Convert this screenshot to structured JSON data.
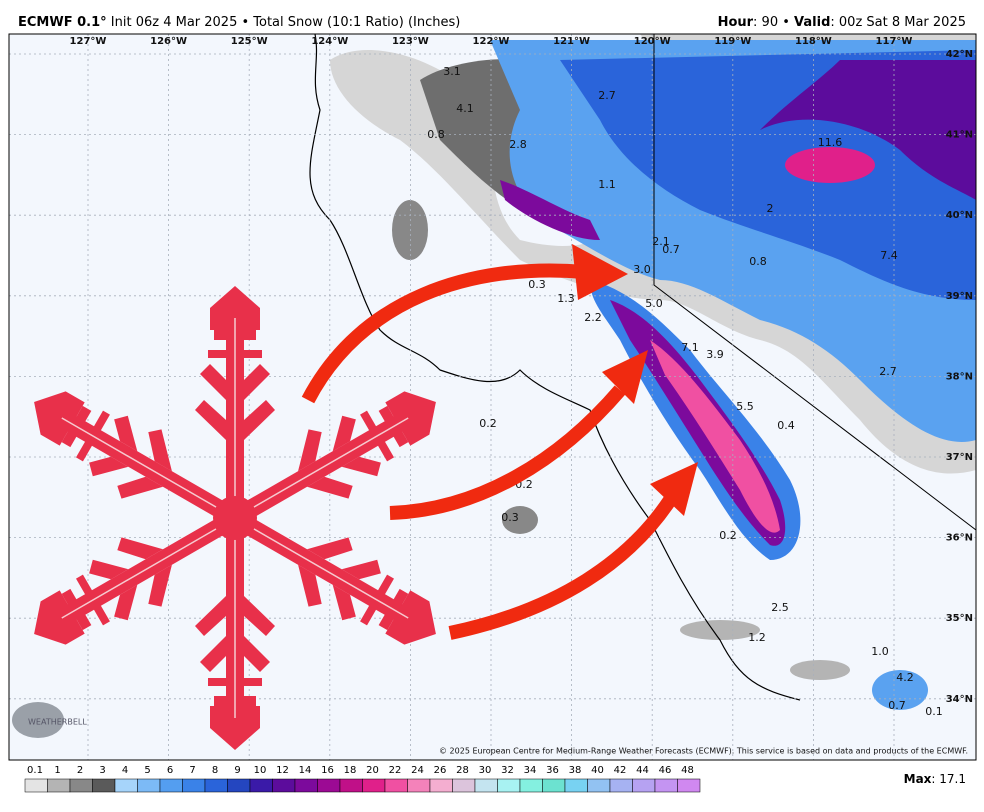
{
  "header": {
    "model": "ECMWF 0.1°",
    "details": "Init 06z 4 Mar 2025 • Total Snow (10:1 Ratio) (Inches)",
    "hour_label": "Hour",
    "hour_value": ": 90 • ",
    "valid_label": "Valid",
    "valid_value": ": 00z Sat 8 Mar 2025"
  },
  "map": {
    "lon_labels": [
      "127°W",
      "126°W",
      "125°W",
      "124°W",
      "123°W",
      "122°W",
      "121°W",
      "120°W",
      "119°W",
      "118°W",
      "117°W"
    ],
    "lat_labels": [
      "42°N",
      "41°N",
      "40°N",
      "39°N",
      "38°N",
      "37°N",
      "36°N",
      "35°N",
      "34°N"
    ],
    "point_labels": [
      "3.1",
      "4.1",
      "2.7",
      "0.8",
      "2.8",
      "11.6",
      "1.1",
      "2",
      "2.1",
      "0.7",
      "3.0",
      "0.8",
      "7.4",
      "0.3",
      "1.3",
      "5.0",
      "2.2",
      "7.1",
      "3.9",
      "0.6",
      "2.7",
      "5.5",
      "0.4",
      "0.2",
      "0.2",
      "0.3",
      "0.2",
      "2.5",
      "1.2",
      "1.0",
      "4.2",
      "0.7",
      "0.1"
    ],
    "copyright": "© 2025 European Centre for Medium-Range Weather Forecasts (ECMWF). This service is based on data and products of the ECMWF.",
    "logo": "WEATHERBELL"
  },
  "legend": {
    "items": [
      {
        "label": "0.1",
        "color": "#e4e4e4"
      },
      {
        "label": "1",
        "color": "#b4b4b4"
      },
      {
        "label": "2",
        "color": "#888888"
      },
      {
        "label": "3",
        "color": "#5a5a5a"
      },
      {
        "label": "4",
        "color": "#a6d4fa"
      },
      {
        "label": "5",
        "color": "#7cbaf6"
      },
      {
        "label": "6",
        "color": "#549ef0"
      },
      {
        "label": "7",
        "color": "#3a82e8"
      },
      {
        "label": "8",
        "color": "#2a64da"
      },
      {
        "label": "9",
        "color": "#2446c0"
      },
      {
        "label": "10",
        "color": "#3a1aa8"
      },
      {
        "label": "12",
        "color": "#5c0c9c"
      },
      {
        "label": "14",
        "color": "#7c0a9c"
      },
      {
        "label": "16",
        "color": "#9c0a94"
      },
      {
        "label": "18",
        "color": "#c01088"
      },
      {
        "label": "20",
        "color": "#e0208a"
      },
      {
        "label": "22",
        "color": "#f050a2"
      },
      {
        "label": "24",
        "color": "#f482ba"
      },
      {
        "label": "26",
        "color": "#f4aed0"
      },
      {
        "label": "28",
        "color": "#dcc4dc"
      },
      {
        "label": "30",
        "color": "#c4e4f0"
      },
      {
        "label": "32",
        "color": "#a8f2f2"
      },
      {
        "label": "34",
        "color": "#84f0e0"
      },
      {
        "label": "36",
        "color": "#6ce2d0"
      },
      {
        "label": "38",
        "color": "#78d2f2"
      },
      {
        "label": "40",
        "color": "#92c2f2"
      },
      {
        "label": "42",
        "color": "#a6b2f2"
      },
      {
        "label": "44",
        "color": "#b6a2f2"
      },
      {
        "label": "46",
        "color": "#c494f2"
      },
      {
        "label": "48",
        "color": "#d088f0"
      }
    ],
    "max_label": "Max",
    "max_value": ": 17.1"
  }
}
